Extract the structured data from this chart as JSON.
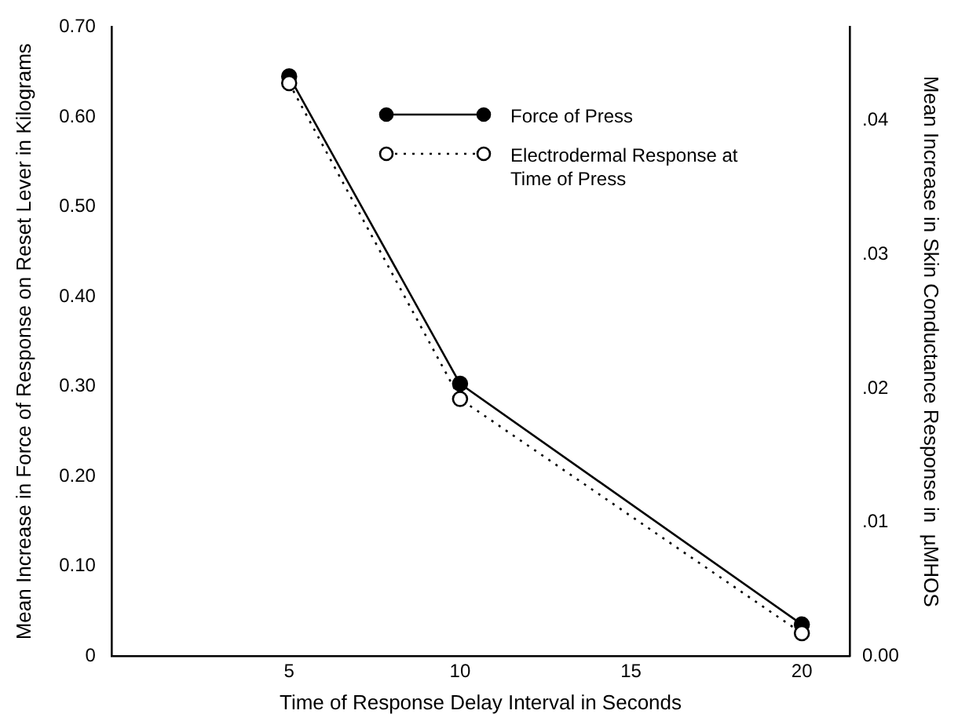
{
  "chart_data": {
    "type": "line",
    "xlabel": "Time of Response Delay Interval in Seconds",
    "ylabel": "Mean Increase in Force of Response on Reset Lever in Kilograms",
    "y2label": "Mean Increase in Skin Conductance Response in  µMHOS",
    "x": [
      5,
      10,
      20
    ],
    "series": [
      {
        "name": "Force of Press",
        "color": "#000000",
        "values": [
          0.645,
          0.303,
          0.035
        ],
        "line_style": "solid"
      },
      {
        "name": "Electrodermal Response at Time of Press",
        "color": "#000000",
        "values": [
          0.0428,
          0.0192,
          0.0017
        ],
        "axis": "y2",
        "line_style": "dotted"
      }
    ],
    "xlim": [
      -0.2,
      21.4
    ],
    "xticks": [
      5,
      10,
      15,
      20
    ],
    "ylim": [
      0,
      0.7
    ],
    "yticks": [
      0,
      {
        "value": 0.1,
        "label": "0.10"
      },
      {
        "value": 0.2,
        "label": "0.20"
      },
      {
        "value": 0.3,
        "label": "0.30"
      },
      {
        "value": 0.4,
        "label": "0.40"
      },
      {
        "value": 0.5,
        "label": "0.50"
      },
      {
        "value": 0.6,
        "label": "0.60"
      },
      {
        "value": 0.7,
        "label": "0.70"
      }
    ],
    "y2lim": [
      0,
      0.047
    ],
    "y2ticks": [
      {
        "value": 0,
        "label": "0.00"
      },
      {
        "value": 0.01,
        "label": ".01"
      },
      {
        "value": 0.02,
        "label": ".02"
      },
      {
        "value": 0.03,
        "label": ".03"
      },
      {
        "value": 0.04,
        "label": ".04"
      }
    ],
    "marker": "circle",
    "legend": "top right",
    "grid": false
  }
}
